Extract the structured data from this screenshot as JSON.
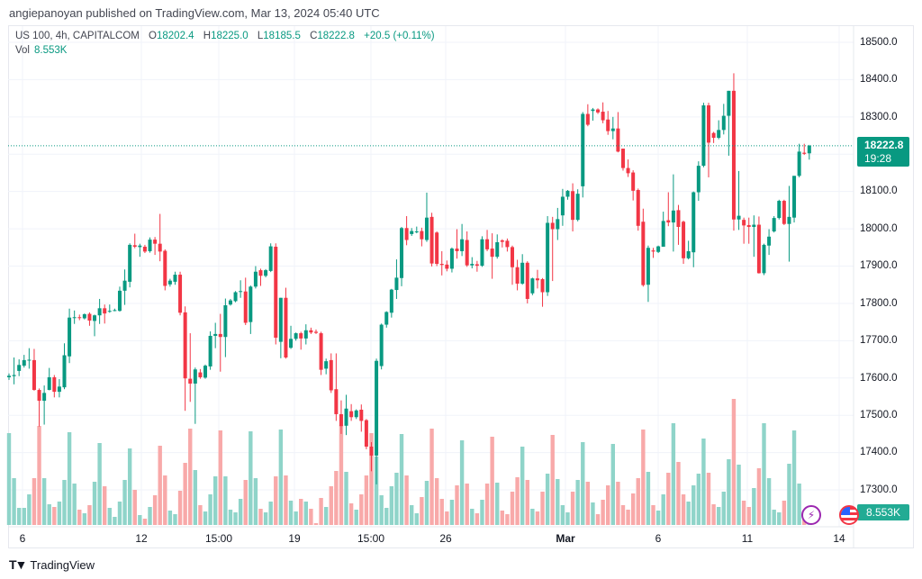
{
  "header": {
    "published": "angiepanoyan published on TradingView.com, Mar 13, 2024 05:40 UTC"
  },
  "legend": {
    "symbol": "US 100, 4h, CAPITALCOM",
    "o_label": "O",
    "o": "18202.4",
    "h_label": "H",
    "h": "18225.0",
    "l_label": "L",
    "l": "18185.5",
    "c_label": "C",
    "c": "18222.8",
    "change": "+20.5 (+0.11%)",
    "vol_label": "Vol",
    "vol": "8.553K"
  },
  "price_label": {
    "price": "18222.8",
    "countdown": "19:28"
  },
  "volume_label": "8.553K",
  "footer": {
    "brand": "TradingView"
  },
  "icons": [
    "lightning-icon",
    "us-flag-icon",
    "tradingview-logo-icon"
  ],
  "colors": {
    "up": "#089981",
    "down": "#F23645",
    "up_volume": "#8fd4c9",
    "down_volume": "#f8a9a9",
    "accent": "#089981"
  },
  "chart_data": {
    "type": "candlestick",
    "title": "US 100, 4h, CAPITALCOM",
    "ylim": [
      17300,
      18500
    ],
    "price_ticks": [
      "18500.0",
      "18400.0",
      "18300.0",
      "18100.0",
      "18000.0",
      "17900.0",
      "17800.0",
      "17700.0",
      "17600.0",
      "17500.0",
      "17400.0",
      "17300.0"
    ],
    "x_ticks": [
      "6",
      "12",
      "15:00",
      "19",
      "15:00",
      "26",
      "Mar",
      "6",
      "11",
      "14"
    ],
    "volume_unit": "K",
    "candle_fields": [
      "open",
      "high",
      "low",
      "close",
      "volume"
    ],
    "candles": [
      [
        17602,
        17612,
        17595,
        17606,
        204
      ],
      [
        17605,
        17655,
        17583,
        17608,
        104
      ],
      [
        17619,
        17650,
        17605,
        17635,
        38
      ],
      [
        17633,
        17662,
        17628,
        17648,
        38
      ],
      [
        17648,
        17680,
        17625,
        17649,
        68
      ],
      [
        17648,
        17678,
        17566,
        17568,
        104
      ],
      [
        17568,
        17572,
        17470,
        17539,
        220
      ],
      [
        17539,
        17580,
        17475,
        17560,
        104
      ],
      [
        17568,
        17627,
        17567,
        17602,
        46
      ],
      [
        17602,
        17608,
        17548,
        17563,
        40
      ],
      [
        17563,
        17597,
        17548,
        17577,
        52
      ],
      [
        17575,
        17693,
        17570,
        17661,
        100
      ],
      [
        17658,
        17786,
        17640,
        17762,
        206
      ],
      [
        17762,
        17781,
        17745,
        17763,
        92
      ],
      [
        17763,
        17770,
        17755,
        17762,
        34
      ],
      [
        17760,
        17773,
        17757,
        17771,
        26
      ],
      [
        17772,
        17776,
        17740,
        17754,
        44
      ],
      [
        17753,
        17770,
        17712,
        17768,
        96
      ],
      [
        17768,
        17812,
        17745,
        17787,
        182
      ],
      [
        17787,
        17797,
        17746,
        17773,
        86
      ],
      [
        17778,
        17797,
        17775,
        17780,
        38
      ],
      [
        17781,
        17786,
        17779,
        17782,
        18
      ],
      [
        17780,
        17845,
        17778,
        17834,
        52
      ],
      [
        17834,
        17891,
        17796,
        17861,
        100
      ],
      [
        17858,
        17961,
        17843,
        17957,
        170
      ],
      [
        17956,
        17987,
        17948,
        17952,
        78
      ],
      [
        17951,
        17960,
        17925,
        17955,
        22
      ],
      [
        17952,
        17957,
        17935,
        17939,
        14
      ],
      [
        17940,
        17977,
        17936,
        17971,
        40
      ],
      [
        17971,
        17978,
        17930,
        17960,
        66
      ],
      [
        17960,
        18040,
        17913,
        17939,
        176
      ],
      [
        17941,
        17945,
        17835,
        17847,
        110
      ],
      [
        17851,
        17866,
        17845,
        17861,
        32
      ],
      [
        17858,
        17885,
        17850,
        17877,
        24
      ],
      [
        17877,
        17885,
        17768,
        17775,
        76
      ],
      [
        17776,
        17792,
        17512,
        17599,
        138
      ],
      [
        17598,
        17720,
        17536,
        17585,
        214
      ],
      [
        17585,
        17628,
        17477,
        17623,
        122
      ],
      [
        17615,
        17624,
        17598,
        17602,
        44
      ],
      [
        17601,
        17636,
        17598,
        17633,
        30
      ],
      [
        17631,
        17725,
        17622,
        17713,
        68
      ],
      [
        17713,
        17748,
        17680,
        17718,
        108
      ],
      [
        17718,
        17772,
        17617,
        17710,
        210
      ],
      [
        17710,
        17813,
        17656,
        17795,
        108
      ],
      [
        17797,
        17812,
        17794,
        17808,
        34
      ],
      [
        17806,
        17833,
        17803,
        17830,
        28
      ],
      [
        17831,
        17862,
        17815,
        17833,
        58
      ],
      [
        17832,
        17869,
        17742,
        17748,
        100
      ],
      [
        17750,
        17848,
        17718,
        17845,
        208
      ],
      [
        17845,
        17900,
        17840,
        17885,
        104
      ],
      [
        17889,
        17893,
        17847,
        17874,
        36
      ],
      [
        17874,
        17892,
        17870,
        17889,
        28
      ],
      [
        17887,
        17961,
        17884,
        17953,
        52
      ],
      [
        17952,
        17961,
        17690,
        17708,
        108
      ],
      [
        17697,
        17815,
        17653,
        17815,
        212
      ],
      [
        17815,
        17842,
        17652,
        17655,
        110
      ],
      [
        17681,
        17740,
        17678,
        17705,
        54
      ],
      [
        17705,
        17722,
        17700,
        17720,
        30
      ],
      [
        17720,
        17724,
        17676,
        17706,
        58
      ],
      [
        17706,
        17744,
        17690,
        17728,
        52
      ],
      [
        17728,
        17735,
        17718,
        17722,
        36
      ],
      [
        17724,
        17730,
        17718,
        17721,
        4
      ],
      [
        17720,
        17724,
        17608,
        17622,
        60
      ],
      [
        17625,
        17652,
        17610,
        17645,
        40
      ],
      [
        17648,
        17666,
        17560,
        17567,
        86
      ],
      [
        17570,
        17666,
        17485,
        17503,
        120
      ],
      [
        17503,
        17540,
        17450,
        17471,
        222
      ],
      [
        17472,
        17555,
        17447,
        17518,
        118
      ],
      [
        17511,
        17530,
        17485,
        17495,
        48
      ],
      [
        17495,
        17516,
        17490,
        17513,
        34
      ],
      [
        17515,
        17529,
        17456,
        17485,
        68
      ],
      [
        17487,
        17490,
        17409,
        17416,
        110
      ],
      [
        17416,
        17428,
        17350,
        17392,
        204
      ],
      [
        17392,
        17652,
        17315,
        17646,
        152
      ],
      [
        17632,
        17746,
        17623,
        17743,
        66
      ],
      [
        17743,
        17779,
        17735,
        17777,
        38
      ],
      [
        17775,
        17839,
        17762,
        17837,
        86
      ],
      [
        17836,
        17918,
        17812,
        17869,
        116
      ],
      [
        17868,
        18005,
        17846,
        18002,
        202
      ],
      [
        18002,
        18034,
        17956,
        17970,
        110
      ],
      [
        17986,
        18002,
        17981,
        17994,
        44
      ],
      [
        17992,
        18006,
        17988,
        17993,
        26
      ],
      [
        17994,
        18003,
        17953,
        17972,
        62
      ],
      [
        17970,
        18097,
        17965,
        18030,
        98
      ],
      [
        18032,
        18043,
        17899,
        17907,
        214
      ],
      [
        17990,
        17993,
        17900,
        17906,
        104
      ],
      [
        17906,
        17940,
        17875,
        17903,
        58
      ],
      [
        17904,
        17915,
        17886,
        17893,
        30
      ],
      [
        17893,
        17950,
        17883,
        17947,
        56
      ],
      [
        17947,
        17999,
        17920,
        17940,
        88
      ],
      [
        17940,
        18013,
        17927,
        17972,
        188
      ],
      [
        17970,
        17993,
        17898,
        17902,
        92
      ],
      [
        17902,
        17924,
        17894,
        17906,
        36
      ],
      [
        17905,
        17914,
        17885,
        17901,
        26
      ],
      [
        17901,
        17980,
        17898,
        17972,
        56
      ],
      [
        17972,
        17997,
        17940,
        17945,
        92
      ],
      [
        17947,
        17988,
        17866,
        17925,
        196
      ],
      [
        17925,
        17985,
        17920,
        17964,
        94
      ],
      [
        17969,
        17972,
        17950,
        17965,
        32
      ],
      [
        17968,
        17974,
        17939,
        17951,
        24
      ],
      [
        17951,
        17955,
        17850,
        17897,
        74
      ],
      [
        17897,
        17917,
        17835,
        17853,
        106
      ],
      [
        17853,
        17932,
        17850,
        17909,
        174
      ],
      [
        17909,
        17913,
        17800,
        17812,
        100
      ],
      [
        17827,
        17869,
        17822,
        17867,
        36
      ],
      [
        17867,
        17890,
        17840,
        17862,
        30
      ],
      [
        17865,
        17868,
        17791,
        17830,
        74
      ],
      [
        17830,
        18034,
        17820,
        18016,
        114
      ],
      [
        18016,
        18032,
        17860,
        17999,
        200
      ],
      [
        17999,
        18056,
        17970,
        18026,
        102
      ],
      [
        18036,
        18107,
        18008,
        18086,
        44
      ],
      [
        18086,
        18104,
        18078,
        18102,
        28
      ],
      [
        18101,
        18122,
        17993,
        18024,
        74
      ],
      [
        18024,
        18106,
        18020,
        18094,
        100
      ],
      [
        18114,
        18313,
        18084,
        18308,
        184
      ],
      [
        18308,
        18334,
        18275,
        18279,
        96
      ],
      [
        18316,
        18324,
        18290,
        18320,
        50
      ],
      [
        18320,
        18323,
        18308,
        18312,
        24
      ],
      [
        18314,
        18339,
        18283,
        18291,
        56
      ],
      [
        18293,
        18316,
        18252,
        18262,
        88
      ],
      [
        18262,
        18300,
        18240,
        18269,
        180
      ],
      [
        18269,
        18313,
        18205,
        18207,
        96
      ],
      [
        18215,
        18215,
        18156,
        18163,
        44
      ],
      [
        18163,
        18186,
        18139,
        18149,
        34
      ],
      [
        18151,
        18157,
        18076,
        18102,
        70
      ],
      [
        18104,
        18108,
        17995,
        18008,
        104
      ],
      [
        18019,
        18054,
        17845,
        17849,
        212
      ],
      [
        17850,
        17955,
        17804,
        17949,
        118
      ],
      [
        17942,
        17949,
        17922,
        17939,
        44
      ],
      [
        17938,
        17955,
        17935,
        17953,
        32
      ],
      [
        17952,
        18046,
        17952,
        18021,
        68
      ],
      [
        18023,
        18098,
        18007,
        18017,
        116
      ],
      [
        18017,
        18146,
        17939,
        18049,
        226
      ],
      [
        18050,
        18064,
        17957,
        18005,
        140
      ],
      [
        18019,
        18022,
        17906,
        17921,
        68
      ],
      [
        17921,
        17968,
        17918,
        17940,
        52
      ],
      [
        17937,
        18100,
        17897,
        18098,
        88
      ],
      [
        18098,
        18181,
        18075,
        18169,
        114
      ],
      [
        18169,
        18338,
        18165,
        18331,
        192
      ],
      [
        18331,
        18338,
        18138,
        18231,
        116
      ],
      [
        18257,
        18260,
        18230,
        18244,
        46
      ],
      [
        18244,
        18291,
        18240,
        18265,
        40
      ],
      [
        18265,
        18335,
        18253,
        18303,
        74
      ],
      [
        18303,
        18370,
        18196,
        18370,
        146
      ],
      [
        18370,
        18417,
        17995,
        18025,
        280
      ],
      [
        18025,
        18155,
        17997,
        18035,
        134
      ],
      [
        18024,
        18030,
        17960,
        18009,
        54
      ],
      [
        18010,
        18030,
        17960,
        18005,
        40
      ],
      [
        18005,
        18036,
        17925,
        18011,
        82
      ],
      [
        18011,
        18033,
        17880,
        17881,
        126
      ],
      [
        17881,
        17960,
        17876,
        17957,
        226
      ],
      [
        17955,
        17999,
        17930,
        17979,
        104
      ],
      [
        17993,
        18034,
        17990,
        18029,
        34
      ],
      [
        18029,
        18078,
        18025,
        18075,
        28
      ],
      [
        18075,
        18078,
        18010,
        18013,
        54
      ],
      [
        18013,
        18115,
        17912,
        18032,
        136
      ],
      [
        18030,
        18142,
        18017,
        18142,
        210
      ],
      [
        18142,
        18228,
        18138,
        18207,
        92
      ],
      [
        18204,
        18228,
        18198,
        18201,
        12
      ],
      [
        18202.4,
        18225,
        18185.5,
        18222.8,
        8.553
      ]
    ],
    "last_price": 18222.8
  }
}
